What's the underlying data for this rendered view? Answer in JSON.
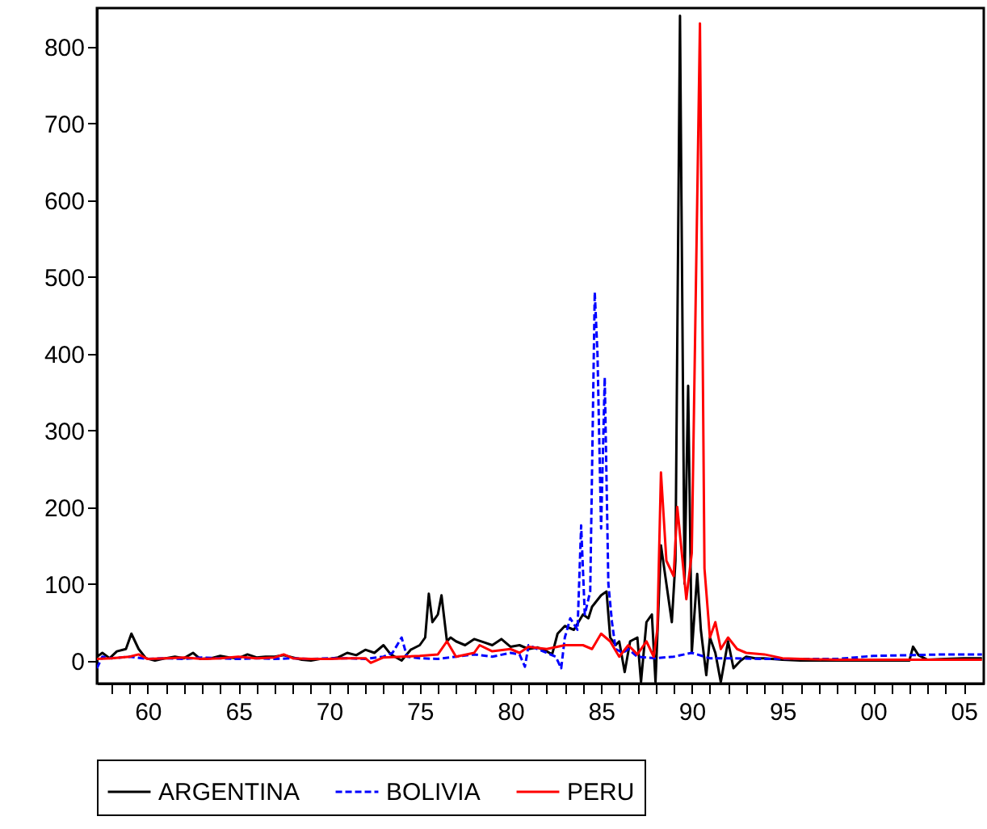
{
  "chart_data": {
    "type": "line",
    "xlim": [
      1957.2,
      2006.1
    ],
    "ylim": [
      -30,
      850
    ],
    "xticks": [
      {
        "value": 1958,
        "label": null
      },
      {
        "value": 1959,
        "label": null
      },
      {
        "value": 1960,
        "label": "60"
      },
      {
        "value": 1961,
        "label": null
      },
      {
        "value": 1962,
        "label": null
      },
      {
        "value": 1963,
        "label": null
      },
      {
        "value": 1964,
        "label": null
      },
      {
        "value": 1965,
        "label": "65"
      },
      {
        "value": 1966,
        "label": null
      },
      {
        "value": 1967,
        "label": null
      },
      {
        "value": 1968,
        "label": null
      },
      {
        "value": 1969,
        "label": null
      },
      {
        "value": 1970,
        "label": "70"
      },
      {
        "value": 1971,
        "label": null
      },
      {
        "value": 1972,
        "label": null
      },
      {
        "value": 1973,
        "label": null
      },
      {
        "value": 1974,
        "label": null
      },
      {
        "value": 1975,
        "label": "75"
      },
      {
        "value": 1976,
        "label": null
      },
      {
        "value": 1977,
        "label": null
      },
      {
        "value": 1978,
        "label": null
      },
      {
        "value": 1979,
        "label": null
      },
      {
        "value": 1980,
        "label": "80"
      },
      {
        "value": 1981,
        "label": null
      },
      {
        "value": 1982,
        "label": null
      },
      {
        "value": 1983,
        "label": null
      },
      {
        "value": 1984,
        "label": null
      },
      {
        "value": 1985,
        "label": "85"
      },
      {
        "value": 1986,
        "label": null
      },
      {
        "value": 1987,
        "label": null
      },
      {
        "value": 1988,
        "label": null
      },
      {
        "value": 1989,
        "label": null
      },
      {
        "value": 1990,
        "label": "90"
      },
      {
        "value": 1991,
        "label": null
      },
      {
        "value": 1992,
        "label": null
      },
      {
        "value": 1993,
        "label": null
      },
      {
        "value": 1994,
        "label": null
      },
      {
        "value": 1995,
        "label": "95"
      },
      {
        "value": 1996,
        "label": null
      },
      {
        "value": 1997,
        "label": null
      },
      {
        "value": 1998,
        "label": null
      },
      {
        "value": 1999,
        "label": null
      },
      {
        "value": 2000,
        "label": "00"
      },
      {
        "value": 2001,
        "label": null
      },
      {
        "value": 2002,
        "label": null
      },
      {
        "value": 2003,
        "label": null
      },
      {
        "value": 2004,
        "label": null
      },
      {
        "value": 2005,
        "label": "05"
      }
    ],
    "yticks": [
      0,
      100,
      200,
      300,
      400,
      500,
      600,
      700,
      800
    ],
    "grid": false,
    "legend": "bottom",
    "series": [
      {
        "name": "ARGENTINA",
        "color": "#000000",
        "line_style": "solid",
        "x": [
          1957.2,
          1957.5,
          1957.9,
          1958.3,
          1958.8,
          1959.1,
          1959.5,
          1959.9,
          1960.4,
          1961,
          1961.5,
          1962,
          1962.5,
          1962.9,
          1963.5,
          1964,
          1964.5,
          1965,
          1965.5,
          1966,
          1966.5,
          1967,
          1967.5,
          1968,
          1968.5,
          1969,
          1969.5,
          1970,
          1970.5,
          1971,
          1971.5,
          1972,
          1972.5,
          1973,
          1973.4,
          1974,
          1974.5,
          1975,
          1975.3,
          1975.5,
          1975.7,
          1976,
          1976.2,
          1976.5,
          1976.7,
          1977,
          1977.5,
          1978,
          1978.5,
          1979,
          1979.5,
          1980,
          1980.5,
          1981,
          1981.5,
          1982,
          1982.3,
          1982.6,
          1983,
          1983.5,
          1984,
          1984.3,
          1984.5,
          1985,
          1985.3,
          1985.5,
          1985.8,
          1986,
          1986.3,
          1986.6,
          1987,
          1987.2,
          1987.5,
          1987.8,
          1988,
          1988.3,
          1988.6,
          1988.9,
          1989.1,
          1989.35,
          1989.6,
          1989.8,
          1990,
          1990.3,
          1990.5,
          1990.8,
          1991,
          1991.3,
          1991.6,
          1992,
          1992.3,
          1992.7,
          1993,
          1993.5,
          1994,
          1995,
          1996,
          1997,
          1998,
          1999,
          2000,
          2001,
          2002,
          2002.2,
          2002.5,
          2003,
          2004,
          2005,
          2006
        ],
        "values": [
          5,
          10,
          3,
          12,
          15,
          35,
          15,
          3,
          0,
          3,
          5,
          3,
          10,
          2,
          3,
          6,
          4,
          3,
          8,
          4,
          5,
          5,
          7,
          4,
          1,
          0,
          2,
          2,
          4,
          10,
          7,
          14,
          10,
          20,
          8,
          0,
          14,
          20,
          30,
          87,
          50,
          60,
          85,
          25,
          30,
          25,
          20,
          28,
          24,
          20,
          28,
          18,
          20,
          15,
          17,
          12,
          8,
          35,
          45,
          40,
          60,
          55,
          70,
          85,
          90,
          30,
          20,
          25,
          -15,
          25,
          30,
          -28,
          50,
          60,
          -28,
          150,
          100,
          50,
          130,
          840,
          100,
          358,
          10,
          113,
          40,
          -19,
          30,
          10,
          -28,
          25,
          -10,
          0,
          5,
          3,
          3,
          1,
          0,
          0,
          0,
          0,
          0,
          0,
          0,
          18,
          7,
          1,
          2,
          3,
          3
        ]
      },
      {
        "name": "BOLIVIA",
        "color": "#0000ff",
        "line_style": "dashed",
        "x": [
          1957.2,
          1957.5,
          1958,
          1959,
          1960,
          1961,
          1962,
          1963,
          1964,
          1965,
          1966,
          1967,
          1968,
          1969,
          1970,
          1971,
          1972,
          1973,
          1973.5,
          1974,
          1974.3,
          1975,
          1976,
          1977,
          1978,
          1979,
          1980,
          1980.5,
          1980.8,
          1981,
          1981.5,
          1982,
          1982.5,
          1982.8,
          1983,
          1983.3,
          1983.7,
          1983.9,
          1984.1,
          1984.4,
          1984.65,
          1984.8,
          1985,
          1985.2,
          1985.4,
          1985.6,
          1985.8,
          1986.2,
          1986.5,
          1987,
          1988,
          1989,
          1990,
          1991,
          1992,
          1994,
          1996,
          1998,
          2000,
          2002,
          2004,
          2006
        ],
        "values": [
          -10,
          5,
          3,
          5,
          2,
          3,
          2,
          4,
          3,
          2,
          3,
          2,
          3,
          2,
          3,
          3,
          2,
          5,
          10,
          30,
          5,
          3,
          2,
          5,
          8,
          5,
          10,
          8,
          -8,
          20,
          15,
          10,
          5,
          -10,
          30,
          55,
          40,
          176,
          60,
          90,
          480,
          400,
          172,
          369,
          100,
          50,
          15,
          10,
          15,
          5,
          3,
          5,
          10,
          3,
          3,
          2,
          2,
          2,
          6,
          7,
          8,
          8
        ]
      },
      {
        "name": "PERU",
        "color": "#ff0000",
        "line_style": "solid",
        "x": [
          1957.2,
          1958,
          1959,
          1959.5,
          1960,
          1961,
          1962,
          1963,
          1964,
          1965,
          1966,
          1967,
          1967.5,
          1968,
          1969,
          1970,
          1971,
          1972,
          1972.3,
          1973,
          1974,
          1975,
          1976,
          1976.5,
          1977,
          1978,
          1978.3,
          1979,
          1980,
          1980.5,
          1981,
          1982,
          1983,
          1984,
          1984.5,
          1985,
          1985.5,
          1986,
          1986.5,
          1987,
          1987.5,
          1987.9,
          1988.1,
          1988.3,
          1988.6,
          1989,
          1989.2,
          1989.45,
          1989.7,
          1990,
          1990.45,
          1990.7,
          1991,
          1991.3,
          1991.6,
          1992,
          1992.5,
          1993,
          1994,
          1995,
          1996,
          1998,
          2000,
          2002,
          2004,
          2006
        ],
        "values": [
          2,
          3,
          5,
          8,
          2,
          3,
          4,
          2,
          3,
          5,
          3,
          4,
          8,
          3,
          2,
          2,
          3,
          3,
          -3,
          4,
          5,
          6,
          8,
          25,
          5,
          10,
          20,
          12,
          15,
          10,
          18,
          15,
          20,
          20,
          15,
          35,
          25,
          5,
          20,
          8,
          25,
          5,
          40,
          245,
          130,
          110,
          200,
          140,
          80,
          140,
          830,
          120,
          30,
          50,
          15,
          30,
          15,
          10,
          8,
          3,
          2,
          1,
          1,
          1,
          1,
          1
        ]
      }
    ]
  }
}
